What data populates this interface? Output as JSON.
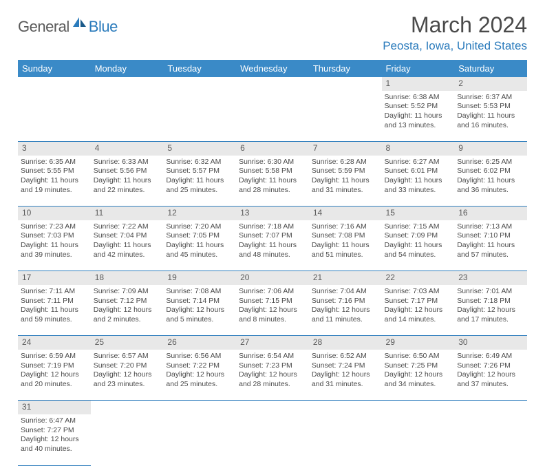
{
  "logo": {
    "dark": "General",
    "blue": "Blue"
  },
  "title": "March 2024",
  "location": "Peosta, Iowa, United States",
  "colors": {
    "header_bg": "#3a8ac7",
    "accent": "#2b7bbc",
    "text": "#4a4a4a",
    "daynum_bg": "#e8e8e8"
  },
  "weekdays": [
    "Sunday",
    "Monday",
    "Tuesday",
    "Wednesday",
    "Thursday",
    "Friday",
    "Saturday"
  ],
  "weeks": [
    {
      "nums": [
        "",
        "",
        "",
        "",
        "",
        "1",
        "2"
      ],
      "cells": [
        null,
        null,
        null,
        null,
        null,
        {
          "sunrise": "Sunrise: 6:38 AM",
          "sunset": "Sunset: 5:52 PM",
          "day1": "Daylight: 11 hours",
          "day2": "and 13 minutes."
        },
        {
          "sunrise": "Sunrise: 6:37 AM",
          "sunset": "Sunset: 5:53 PM",
          "day1": "Daylight: 11 hours",
          "day2": "and 16 minutes."
        }
      ]
    },
    {
      "nums": [
        "3",
        "4",
        "5",
        "6",
        "7",
        "8",
        "9"
      ],
      "cells": [
        {
          "sunrise": "Sunrise: 6:35 AM",
          "sunset": "Sunset: 5:55 PM",
          "day1": "Daylight: 11 hours",
          "day2": "and 19 minutes."
        },
        {
          "sunrise": "Sunrise: 6:33 AM",
          "sunset": "Sunset: 5:56 PM",
          "day1": "Daylight: 11 hours",
          "day2": "and 22 minutes."
        },
        {
          "sunrise": "Sunrise: 6:32 AM",
          "sunset": "Sunset: 5:57 PM",
          "day1": "Daylight: 11 hours",
          "day2": "and 25 minutes."
        },
        {
          "sunrise": "Sunrise: 6:30 AM",
          "sunset": "Sunset: 5:58 PM",
          "day1": "Daylight: 11 hours",
          "day2": "and 28 minutes."
        },
        {
          "sunrise": "Sunrise: 6:28 AM",
          "sunset": "Sunset: 5:59 PM",
          "day1": "Daylight: 11 hours",
          "day2": "and 31 minutes."
        },
        {
          "sunrise": "Sunrise: 6:27 AM",
          "sunset": "Sunset: 6:01 PM",
          "day1": "Daylight: 11 hours",
          "day2": "and 33 minutes."
        },
        {
          "sunrise": "Sunrise: 6:25 AM",
          "sunset": "Sunset: 6:02 PM",
          "day1": "Daylight: 11 hours",
          "day2": "and 36 minutes."
        }
      ]
    },
    {
      "nums": [
        "10",
        "11",
        "12",
        "13",
        "14",
        "15",
        "16"
      ],
      "cells": [
        {
          "sunrise": "Sunrise: 7:23 AM",
          "sunset": "Sunset: 7:03 PM",
          "day1": "Daylight: 11 hours",
          "day2": "and 39 minutes."
        },
        {
          "sunrise": "Sunrise: 7:22 AM",
          "sunset": "Sunset: 7:04 PM",
          "day1": "Daylight: 11 hours",
          "day2": "and 42 minutes."
        },
        {
          "sunrise": "Sunrise: 7:20 AM",
          "sunset": "Sunset: 7:05 PM",
          "day1": "Daylight: 11 hours",
          "day2": "and 45 minutes."
        },
        {
          "sunrise": "Sunrise: 7:18 AM",
          "sunset": "Sunset: 7:07 PM",
          "day1": "Daylight: 11 hours",
          "day2": "and 48 minutes."
        },
        {
          "sunrise": "Sunrise: 7:16 AM",
          "sunset": "Sunset: 7:08 PM",
          "day1": "Daylight: 11 hours",
          "day2": "and 51 minutes."
        },
        {
          "sunrise": "Sunrise: 7:15 AM",
          "sunset": "Sunset: 7:09 PM",
          "day1": "Daylight: 11 hours",
          "day2": "and 54 minutes."
        },
        {
          "sunrise": "Sunrise: 7:13 AM",
          "sunset": "Sunset: 7:10 PM",
          "day1": "Daylight: 11 hours",
          "day2": "and 57 minutes."
        }
      ]
    },
    {
      "nums": [
        "17",
        "18",
        "19",
        "20",
        "21",
        "22",
        "23"
      ],
      "cells": [
        {
          "sunrise": "Sunrise: 7:11 AM",
          "sunset": "Sunset: 7:11 PM",
          "day1": "Daylight: 11 hours",
          "day2": "and 59 minutes."
        },
        {
          "sunrise": "Sunrise: 7:09 AM",
          "sunset": "Sunset: 7:12 PM",
          "day1": "Daylight: 12 hours",
          "day2": "and 2 minutes."
        },
        {
          "sunrise": "Sunrise: 7:08 AM",
          "sunset": "Sunset: 7:14 PM",
          "day1": "Daylight: 12 hours",
          "day2": "and 5 minutes."
        },
        {
          "sunrise": "Sunrise: 7:06 AM",
          "sunset": "Sunset: 7:15 PM",
          "day1": "Daylight: 12 hours",
          "day2": "and 8 minutes."
        },
        {
          "sunrise": "Sunrise: 7:04 AM",
          "sunset": "Sunset: 7:16 PM",
          "day1": "Daylight: 12 hours",
          "day2": "and 11 minutes."
        },
        {
          "sunrise": "Sunrise: 7:03 AM",
          "sunset": "Sunset: 7:17 PM",
          "day1": "Daylight: 12 hours",
          "day2": "and 14 minutes."
        },
        {
          "sunrise": "Sunrise: 7:01 AM",
          "sunset": "Sunset: 7:18 PM",
          "day1": "Daylight: 12 hours",
          "day2": "and 17 minutes."
        }
      ]
    },
    {
      "nums": [
        "24",
        "25",
        "26",
        "27",
        "28",
        "29",
        "30"
      ],
      "cells": [
        {
          "sunrise": "Sunrise: 6:59 AM",
          "sunset": "Sunset: 7:19 PM",
          "day1": "Daylight: 12 hours",
          "day2": "and 20 minutes."
        },
        {
          "sunrise": "Sunrise: 6:57 AM",
          "sunset": "Sunset: 7:20 PM",
          "day1": "Daylight: 12 hours",
          "day2": "and 23 minutes."
        },
        {
          "sunrise": "Sunrise: 6:56 AM",
          "sunset": "Sunset: 7:22 PM",
          "day1": "Daylight: 12 hours",
          "day2": "and 25 minutes."
        },
        {
          "sunrise": "Sunrise: 6:54 AM",
          "sunset": "Sunset: 7:23 PM",
          "day1": "Daylight: 12 hours",
          "day2": "and 28 minutes."
        },
        {
          "sunrise": "Sunrise: 6:52 AM",
          "sunset": "Sunset: 7:24 PM",
          "day1": "Daylight: 12 hours",
          "day2": "and 31 minutes."
        },
        {
          "sunrise": "Sunrise: 6:50 AM",
          "sunset": "Sunset: 7:25 PM",
          "day1": "Daylight: 12 hours",
          "day2": "and 34 minutes."
        },
        {
          "sunrise": "Sunrise: 6:49 AM",
          "sunset": "Sunset: 7:26 PM",
          "day1": "Daylight: 12 hours",
          "day2": "and 37 minutes."
        }
      ]
    },
    {
      "nums": [
        "31",
        "",
        "",
        "",
        "",
        "",
        ""
      ],
      "cells": [
        {
          "sunrise": "Sunrise: 6:47 AM",
          "sunset": "Sunset: 7:27 PM",
          "day1": "Daylight: 12 hours",
          "day2": "and 40 minutes."
        },
        null,
        null,
        null,
        null,
        null,
        null
      ]
    }
  ]
}
